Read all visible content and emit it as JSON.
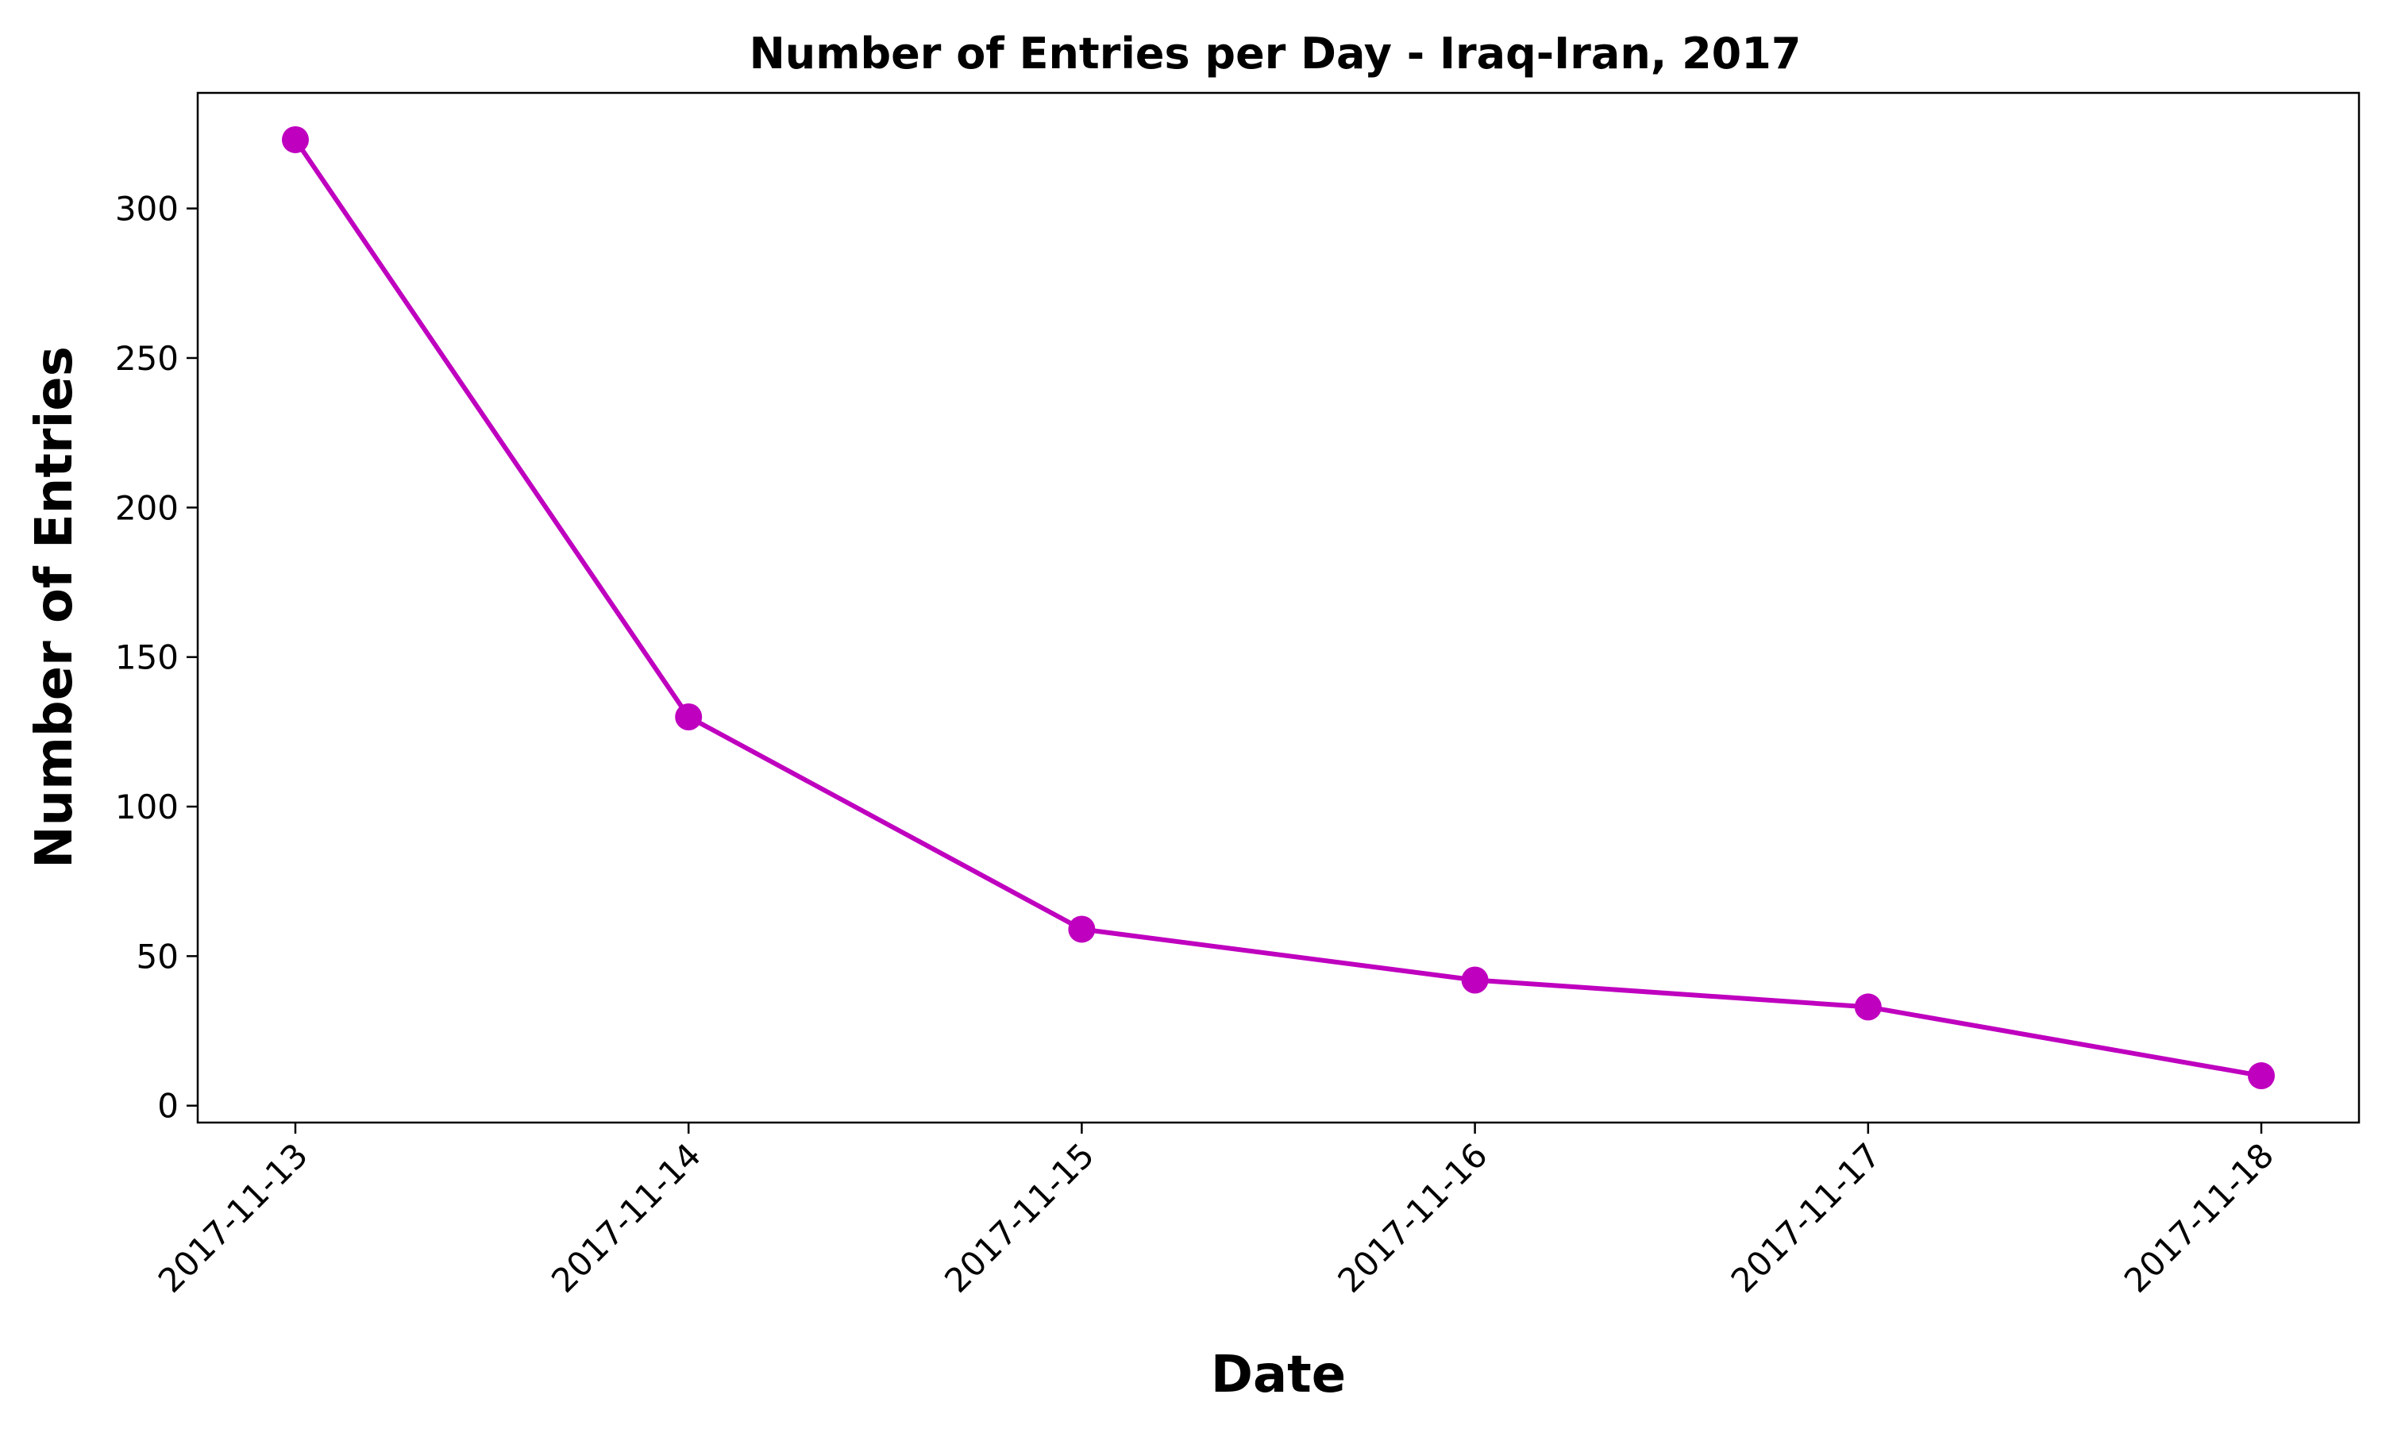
{
  "chart_data": {
    "type": "line",
    "title": "Number of Entries per Day - Iraq-Iran, 2017",
    "xlabel": "Date",
    "ylabel": "Number of Entries",
    "categories": [
      "2017-11-13",
      "2017-11-14",
      "2017-11-15",
      "2017-11-16",
      "2017-11-17",
      "2017-11-18"
    ],
    "series": [
      {
        "values": [
          323,
          130,
          59,
          42,
          33,
          10
        ],
        "color": "#bf00bf"
      }
    ],
    "yticks": [
      0,
      50,
      100,
      150,
      200,
      250,
      300
    ],
    "ylim": [
      -5.65,
      338.65
    ],
    "grid": false,
    "legend": "none",
    "marker": "circle"
  }
}
